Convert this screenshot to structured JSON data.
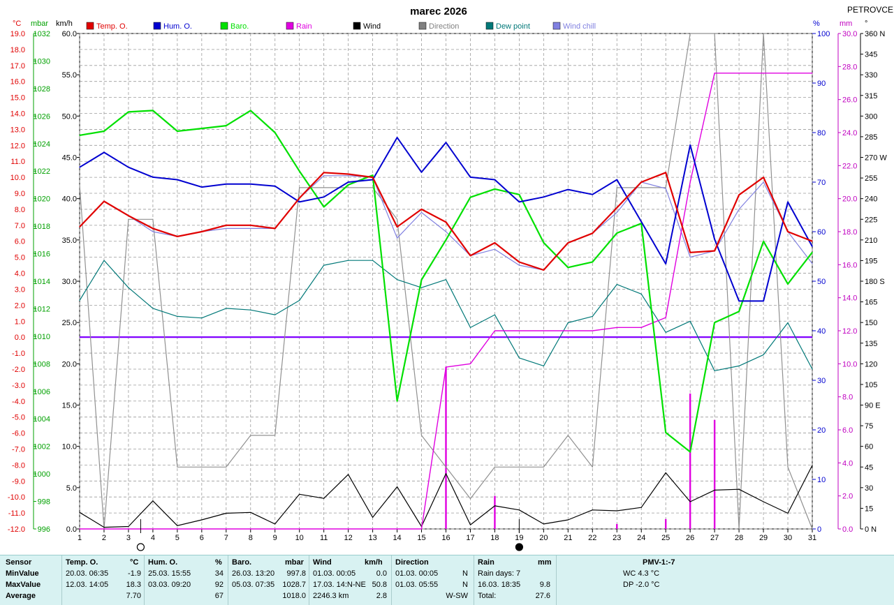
{
  "title": "marec 2026",
  "station": "PETROVCE",
  "axis_units": {
    "temp": "°C",
    "baro": "mbar",
    "wind": "km/h",
    "hum": "%",
    "rain": "mm",
    "dir": "°"
  },
  "legend": [
    {
      "name": "Temp. O.",
      "color": "#e00000"
    },
    {
      "name": "Hum. O.",
      "color": "#0000d0"
    },
    {
      "name": "Baro.",
      "color": "#00e000"
    },
    {
      "name": "Rain",
      "color": "#e000e0"
    },
    {
      "name": "Wind",
      "color": "#000000"
    },
    {
      "name": "Direction",
      "color": "#808080"
    },
    {
      "name": "Dew point",
      "color": "#007878"
    },
    {
      "name": "Wind chill",
      "color": "#8080e0"
    }
  ],
  "chart_data": {
    "type": "line",
    "x": [
      1,
      2,
      3,
      4,
      5,
      6,
      7,
      8,
      9,
      10,
      11,
      12,
      13,
      14,
      15,
      16,
      17,
      18,
      19,
      20,
      21,
      22,
      23,
      24,
      25,
      26,
      27,
      28,
      29,
      30,
      31
    ],
    "x_ticks": [
      "1",
      "2",
      "3",
      "4",
      "5",
      "6",
      "7",
      "8",
      "9",
      "10",
      "11",
      "12",
      "13",
      "14",
      "15",
      "16",
      "17",
      "18",
      "19",
      "20",
      "21",
      "22",
      "23",
      "24",
      "25",
      "26",
      "27",
      "28",
      "29",
      "30",
      "31"
    ],
    "axes": {
      "temp": {
        "min": -12,
        "max": 19,
        "ticks": [
          "19.0",
          "18.0",
          "17.0",
          "16.0",
          "15.0",
          "14.0",
          "13.0",
          "12.0",
          "11.0",
          "10.0",
          "9.0",
          "8.0",
          "7.0",
          "6.0",
          "5.0",
          "4.0",
          "3.0",
          "2.0",
          "1.0",
          "0.0",
          "-1.0",
          "-2.0",
          "-3.0",
          "-4.0",
          "-5.0",
          "-6.0",
          "-7.0",
          "-8.0",
          "-9.0",
          "-10.0",
          "-11.0",
          "-12.0"
        ]
      },
      "baro": {
        "min": 996,
        "max": 1032,
        "ticks": [
          "1032",
          "1030",
          "1028",
          "1026",
          "1024",
          "1022",
          "1020",
          "1018",
          "1016",
          "1014",
          "1012",
          "1010",
          "1008",
          "1006",
          "1004",
          "1002",
          "1000",
          "998",
          "996"
        ]
      },
      "wind": {
        "min": 0,
        "max": 60,
        "ticks": [
          "60.0",
          "55.0",
          "50.0",
          "45.0",
          "40.0",
          "35.0",
          "30.0",
          "25.0",
          "20.0",
          "15.0",
          "10.0",
          "5.0",
          "0.0"
        ]
      },
      "hum": {
        "min": 0,
        "max": 100,
        "ticks": [
          "100",
          "90",
          "80",
          "70",
          "60",
          "50",
          "40",
          "30",
          "20",
          "10",
          "0"
        ]
      },
      "rain": {
        "min": 0,
        "max": 30,
        "ticks": [
          "30.0",
          "28.0",
          "26.0",
          "24.0",
          "22.0",
          "20.0",
          "18.0",
          "16.0",
          "14.0",
          "12.0",
          "10.0",
          "8.0",
          "6.0",
          "4.0",
          "2.0",
          "0.0"
        ]
      },
      "dir": {
        "min": 0,
        "max": 360,
        "ticks": [
          "360 N",
          "345",
          "330",
          "315",
          "300",
          "285",
          "270 W",
          "255",
          "240",
          "225",
          "210",
          "195",
          "180 S",
          "165",
          "150",
          "135",
          "120",
          "105",
          "90 E",
          "75",
          "60",
          "45",
          "30",
          "15",
          "0 N"
        ]
      }
    },
    "zero_line_temp": 0.0,
    "series": [
      {
        "name": "Temp. O.",
        "axis": "temp",
        "color": "#e00000",
        "width": 2.2,
        "values": [
          6.9,
          8.5,
          7.6,
          6.8,
          6.3,
          6.6,
          7.0,
          7.0,
          6.8,
          8.7,
          10.3,
          10.2,
          10.0,
          6.9,
          8.0,
          7.2,
          5.1,
          5.9,
          4.7,
          4.2,
          5.9,
          6.5,
          8.1,
          9.7,
          10.3,
          5.3,
          5.4,
          8.9,
          10.0,
          6.6,
          6.0
        ]
      },
      {
        "name": "Hum. O.",
        "axis": "hum",
        "color": "#0000d0",
        "width": 2,
        "values": [
          73,
          76,
          73,
          71,
          70.5,
          69,
          69.6,
          69.6,
          69.2,
          66,
          67,
          70,
          70.5,
          79,
          72,
          78,
          71,
          70.5,
          66,
          67,
          68.5,
          67.5,
          70.5,
          62,
          53.5,
          77.5,
          58.5,
          46,
          46,
          66,
          57
        ]
      },
      {
        "name": "Baro.",
        "axis": "baro",
        "color": "#00e000",
        "width": 2.2,
        "values": [
          1024.6,
          1024.9,
          1026.3,
          1026.4,
          1024.9,
          1025.1,
          1025.3,
          1026.4,
          1024.8,
          1022.0,
          1019.4,
          1021.0,
          1021.7,
          1005.3,
          1014.1,
          1017.0,
          1020.1,
          1020.7,
          1020.3,
          1016.8,
          1015.0,
          1015.4,
          1017.5,
          1018.2,
          1003.0,
          1001.6,
          1011.0,
          1011.8,
          1016.9,
          1013.8,
          1016.1
        ]
      },
      {
        "name": "Dew point",
        "axis": "temp",
        "color": "#007878",
        "width": 1.2,
        "values": [
          2.3,
          4.8,
          3.1,
          1.8,
          1.3,
          1.2,
          1.8,
          1.7,
          1.4,
          2.3,
          4.5,
          4.8,
          4.8,
          3.6,
          3.1,
          3.6,
          0.6,
          1.4,
          -1.3,
          -1.8,
          0.9,
          1.3,
          3.3,
          2.7,
          0.3,
          1.0,
          -2.1,
          -1.8,
          -1.1,
          0.9,
          -2.0
        ]
      },
      {
        "name": "Wind chill",
        "axis": "temp",
        "color": "#8080e0",
        "width": 1.2,
        "values": [
          6.9,
          8.5,
          7.6,
          6.6,
          6.3,
          6.6,
          6.8,
          6.8,
          6.8,
          8.7,
          10.1,
          10.1,
          10.0,
          6.2,
          7.8,
          6.6,
          5.1,
          5.5,
          4.5,
          4.2,
          5.9,
          6.5,
          7.8,
          9.7,
          9.3,
          5.0,
          5.4,
          8.0,
          9.7,
          6.6,
          4.6
        ]
      },
      {
        "name": "Wind",
        "axis": "wind",
        "color": "#000000",
        "width": 1.2,
        "values": [
          2.0,
          0.2,
          0.3,
          3.4,
          0.4,
          1.1,
          1.9,
          2.0,
          0.6,
          4.2,
          3.7,
          6.6,
          1.4,
          5.1,
          0.3,
          6.7,
          0.5,
          2.8,
          2.3,
          0.6,
          1.1,
          2.3,
          2.2,
          2.6,
          6.8,
          3.3,
          4.7,
          4.8,
          3.3,
          1.9,
          7.7
        ]
      },
      {
        "name": "Direction",
        "axis": "dir",
        "color": "#909090",
        "width": 1.2,
        "values": [
          250,
          0,
          225,
          225,
          45,
          45,
          45,
          68,
          68,
          248,
          248,
          248,
          248,
          225,
          68,
          45,
          22,
          45,
          45,
          45,
          68,
          45,
          248,
          248,
          248,
          360,
          360,
          0,
          360,
          45,
          0
        ]
      },
      {
        "name": "Rain (cumulative)",
        "axis": "rain",
        "color": "#e000e0",
        "width": 1.4,
        "values": [
          0,
          0,
          0,
          0,
          0,
          0,
          0,
          0,
          0,
          0,
          0,
          0,
          0,
          0,
          0,
          9.8,
          10.0,
          12.0,
          12.0,
          12.0,
          12.0,
          12.0,
          12.2,
          12.2,
          12.8,
          21.0,
          27.6,
          27.6,
          27.6,
          27.6,
          27.6
        ]
      }
    ],
    "rain_bars": {
      "axis": "rain",
      "color": "#e000e0",
      "days": [
        16,
        18,
        23,
        25,
        26,
        27
      ],
      "values": [
        9.8,
        2.0,
        0.3,
        0.6,
        8.2,
        6.6
      ]
    },
    "moon_phases": [
      {
        "day": 3.5,
        "phase": "full"
      },
      {
        "day": 19,
        "phase": "new"
      }
    ],
    "grid": true
  },
  "stats": {
    "headers": {
      "sensor": "Sensor",
      "temp": "Temp. O.",
      "temp_u": "°C",
      "hum": "Hum. O.",
      "hum_u": "%",
      "baro": "Baro.",
      "baro_u": "mbar",
      "wind": "Wind",
      "wind_u": "km/h",
      "dir": "Direction",
      "rain": "Rain",
      "rain_u": "mm",
      "pmv": "PMV-1:-7"
    },
    "rows": [
      {
        "label": "MinValue",
        "temp_dt": "20.03.  06:35",
        "temp_v": "-1.9",
        "hum_dt": "25.03.  15:55",
        "hum_v": "34",
        "baro_dt": "26.03.  13:20",
        "baro_v": "997.8",
        "wind_dt": "01.03.  00:05",
        "wind_v": "0.0",
        "dir_dt": "01.03.  00:05",
        "dir_v": "N",
        "rain_dt": "Rain days: 7",
        "rain_v": "",
        "pmv": "WC 4.3 °C"
      },
      {
        "label": "MaxValue",
        "temp_dt": "12.03.  14:05",
        "temp_v": "18.3",
        "hum_dt": "03.03.  09:20",
        "hum_v": "92",
        "baro_dt": "05.03.  07:35",
        "baro_v": "1028.7",
        "wind_dt": "17.03.  14:N-NE",
        "wind_v": "50.8",
        "dir_dt": "01.03.  05:55",
        "dir_v": "N",
        "rain_dt": "16.03.  18:35",
        "rain_v": "9.8",
        "pmv": "DP -2.0 °C"
      },
      {
        "label": "Average",
        "temp_dt": "",
        "temp_v": "7.70",
        "hum_dt": "",
        "hum_v": "67",
        "baro_dt": "",
        "baro_v": "1018.0",
        "wind_dt": "2246.3 km",
        "wind_v": "2.8",
        "dir_dt": "",
        "dir_v": "W-SW",
        "rain_dt": "Total:",
        "rain_v": "27.6",
        "pmv": ""
      }
    ]
  }
}
